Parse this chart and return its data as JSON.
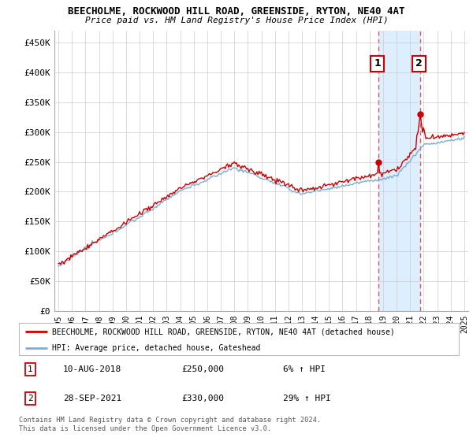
{
  "title": "BEECHOLME, ROCKWOOD HILL ROAD, GREENSIDE, RYTON, NE40 4AT",
  "subtitle": "Price paid vs. HM Land Registry's House Price Index (HPI)",
  "ylim": [
    0,
    470000
  ],
  "yticks": [
    0,
    50000,
    100000,
    150000,
    200000,
    250000,
    300000,
    350000,
    400000,
    450000
  ],
  "ytick_labels": [
    "£0",
    "£50K",
    "£100K",
    "£150K",
    "£200K",
    "£250K",
    "£300K",
    "£350K",
    "£400K",
    "£450K"
  ],
  "start_year": 1995,
  "end_year": 2025,
  "hpi_color": "#7bafd4",
  "price_color": "#cc0000",
  "marker_color": "#cc0000",
  "shade_color": "#ddeeff",
  "sale1_year": 2018.667,
  "sale1_price": 250000,
  "sale2_year": 2021.75,
  "sale2_price": 330000,
  "legend_line1": "BEECHOLME, ROCKWOOD HILL ROAD, GREENSIDE, RYTON, NE40 4AT (detached house)",
  "legend_line2": "HPI: Average price, detached house, Gateshead",
  "table_row1": [
    "1",
    "10-AUG-2018",
    "£250,000",
    "6% ↑ HPI"
  ],
  "table_row2": [
    "2",
    "28-SEP-2021",
    "£330,000",
    "29% ↑ HPI"
  ],
  "footer": "Contains HM Land Registry data © Crown copyright and database right 2024.\nThis data is licensed under the Open Government Licence v3.0.",
  "background_color": "#ffffff",
  "grid_color": "#cccccc"
}
